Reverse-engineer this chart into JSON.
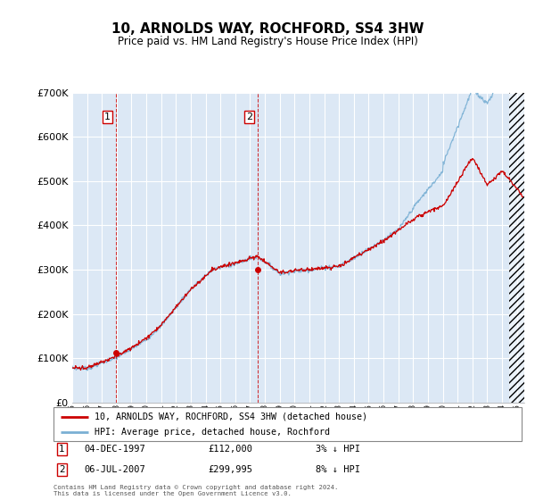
{
  "title": "10, ARNOLDS WAY, ROCHFORD, SS4 3HW",
  "subtitle": "Price paid vs. HM Land Registry's House Price Index (HPI)",
  "legend_line1": "10, ARNOLDS WAY, ROCHFORD, SS4 3HW (detached house)",
  "legend_line2": "HPI: Average price, detached house, Rochford",
  "annotation1": {
    "label": "1",
    "date": "04-DEC-1997",
    "price": "£112,000",
    "note": "3% ↓ HPI",
    "x_year": 1997.92
  },
  "annotation2": {
    "label": "2",
    "date": "06-JUL-2007",
    "price": "£299,995",
    "note": "8% ↓ HPI",
    "x_year": 2007.51
  },
  "footer": "Contains HM Land Registry data © Crown copyright and database right 2024.\nThis data is licensed under the Open Government Licence v3.0.",
  "sale_color": "#cc0000",
  "hpi_color": "#7ab0d4",
  "background_color": "#dce8f5",
  "grid_color": "#c8d8e8",
  "ylim": [
    0,
    700000
  ],
  "xlim_start": 1995.0,
  "xlim_end": 2025.5,
  "y1_price": 112000,
  "y2_price": 299995
}
